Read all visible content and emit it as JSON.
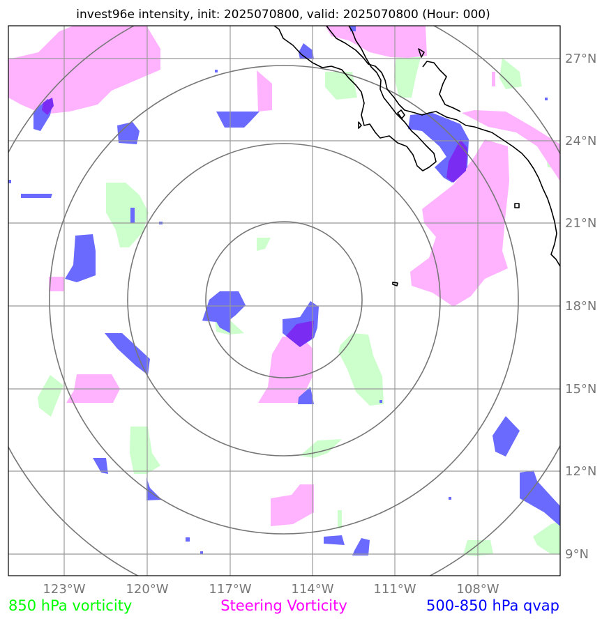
{
  "title": "invest96e intensity, init: 2025070800, valid: 2025070800 (Hour: 000)",
  "lat_labels": [
    "27°N",
    "24°N",
    "21°N",
    "18°N",
    "15°N",
    "12°N",
    "9°N"
  ],
  "lon_labels": [
    "123°W",
    "120°W",
    "117°W",
    "114°W",
    "111°W",
    "108°W"
  ],
  "legend": {
    "vort850": "850 hPa vorticity",
    "steering": "Steering Vorticity",
    "qvap": "500-850 hPa qvap"
  },
  "colors": {
    "vort850": "#00ff00",
    "steering": "#ff00ff",
    "qvap": "#0000ff",
    "vort850_fill": "#ccffcc",
    "steering_fill": "#ffb3ff",
    "qvap_fill": "#6a6aff",
    "overlap_fill": "#7a2cf2",
    "grid": "#999999",
    "rings": "#777777",
    "tick_text": "#777777"
  }
}
